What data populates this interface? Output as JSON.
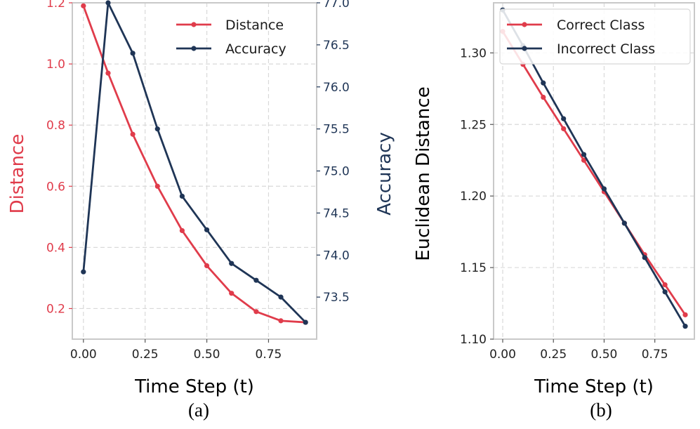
{
  "colors": {
    "distance": "#e03c4b",
    "accuracy": "#1f3556",
    "correct": "#e03c4b",
    "incorrect": "#1f3556",
    "grid": "#d9d9d9",
    "frame": "#c9c9c9"
  },
  "chart_data": [
    {
      "type": "line",
      "panel_label": "(a)",
      "xlabel": "Time Step (t)",
      "ylabel_left": "Distance",
      "ylabel_right": "Accuracy",
      "x": [
        0.0,
        0.1,
        0.2,
        0.3,
        0.4,
        0.5,
        0.6,
        0.7,
        0.8,
        0.9
      ],
      "xlim": [
        -0.045,
        0.945
      ],
      "xticks": [
        0.0,
        0.25,
        0.5,
        0.75
      ],
      "xtick_labels": [
        "0.00",
        "0.25",
        "0.50",
        "0.75"
      ],
      "ylim_left": [
        0.1,
        1.2
      ],
      "yticks_left": [
        0.2,
        0.4,
        0.6,
        0.8,
        1.0,
        1.2
      ],
      "ytick_labels_left": [
        "0.2",
        "0.4",
        "0.6",
        "0.8",
        "1.0",
        "1.2"
      ],
      "ylim_right": [
        73.0,
        77.0
      ],
      "yticks_right": [
        73.5,
        74.0,
        74.5,
        75.0,
        75.5,
        76.0,
        76.5,
        77.0
      ],
      "ytick_labels_right": [
        "73.5",
        "74.0",
        "74.5",
        "75.0",
        "75.5",
        "76.0",
        "76.5",
        "77.0"
      ],
      "legend_position": "top-right",
      "series": [
        {
          "name": "Distance",
          "axis": "left",
          "color_key": "distance",
          "values": [
            1.19,
            0.97,
            0.77,
            0.6,
            0.455,
            0.34,
            0.25,
            0.19,
            0.16,
            0.155
          ]
        },
        {
          "name": "Accuracy",
          "axis": "right",
          "color_key": "accuracy",
          "values": [
            73.8,
            77.0,
            76.4,
            75.5,
            74.7,
            74.3,
            73.9,
            73.7,
            73.5,
            73.2
          ]
        }
      ]
    },
    {
      "type": "line",
      "panel_label": "(b)",
      "xlabel": "Time Step (t)",
      "ylabel": "Euclidean Distance",
      "x": [
        0.0,
        0.1,
        0.2,
        0.3,
        0.4,
        0.5,
        0.6,
        0.7,
        0.8,
        0.9
      ],
      "xlim": [
        -0.045,
        0.945
      ],
      "xticks": [
        0.0,
        0.25,
        0.5,
        0.75
      ],
      "xtick_labels": [
        "0.00",
        "0.25",
        "0.50",
        "0.75"
      ],
      "ylim": [
        1.1,
        1.335
      ],
      "yticks": [
        1.1,
        1.15,
        1.2,
        1.25,
        1.3
      ],
      "ytick_labels": [
        "1.10",
        "1.15",
        "1.20",
        "1.25",
        "1.30"
      ],
      "legend_position": "top-right",
      "series": [
        {
          "name": "Correct Class",
          "color_key": "correct",
          "values": [
            1.315,
            1.292,
            1.269,
            1.247,
            1.225,
            1.203,
            1.181,
            1.159,
            1.138,
            1.117
          ]
        },
        {
          "name": "Incorrect Class",
          "color_key": "incorrect",
          "values": [
            1.33,
            1.305,
            1.279,
            1.254,
            1.229,
            1.205,
            1.181,
            1.157,
            1.133,
            1.109
          ]
        }
      ]
    }
  ]
}
